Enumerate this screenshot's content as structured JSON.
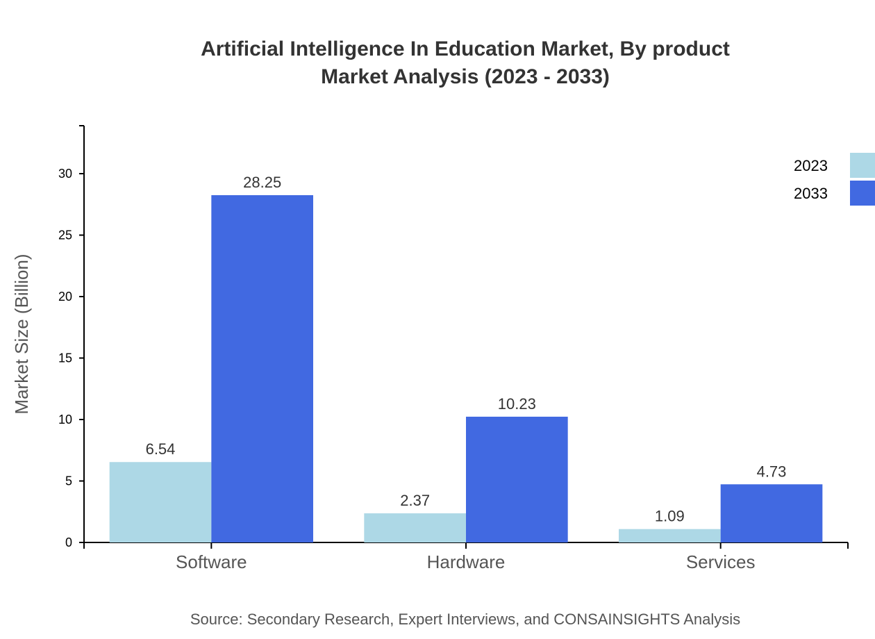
{
  "chart_data": {
    "type": "bar",
    "title": [
      "Artificial Intelligence In Education Market, By product",
      "Market Analysis (2023 - 2033)"
    ],
    "xlabel": "",
    "ylabel": "Market Size (Billion)",
    "categories": [
      "Software",
      "Hardware",
      "Services"
    ],
    "series": [
      {
        "name": "2023",
        "values": [
          6.54,
          2.37,
          1.09
        ],
        "color": "#add8e6"
      },
      {
        "name": "2033",
        "values": [
          28.25,
          10.23,
          4.73
        ],
        "color": "#4169e1"
      }
    ],
    "value_labels": [
      [
        "6.54",
        "2.37",
        "1.09"
      ],
      [
        "28.25",
        "10.23",
        "4.73"
      ]
    ],
    "ylim": [
      0,
      33.9
    ],
    "yticks": [
      0,
      5,
      10,
      15,
      20,
      25,
      30
    ],
    "grid": false,
    "legend": "top-right",
    "source": "Source: Secondary Research, Expert Interviews, and CONSAINSIGHTS Analysis"
  }
}
